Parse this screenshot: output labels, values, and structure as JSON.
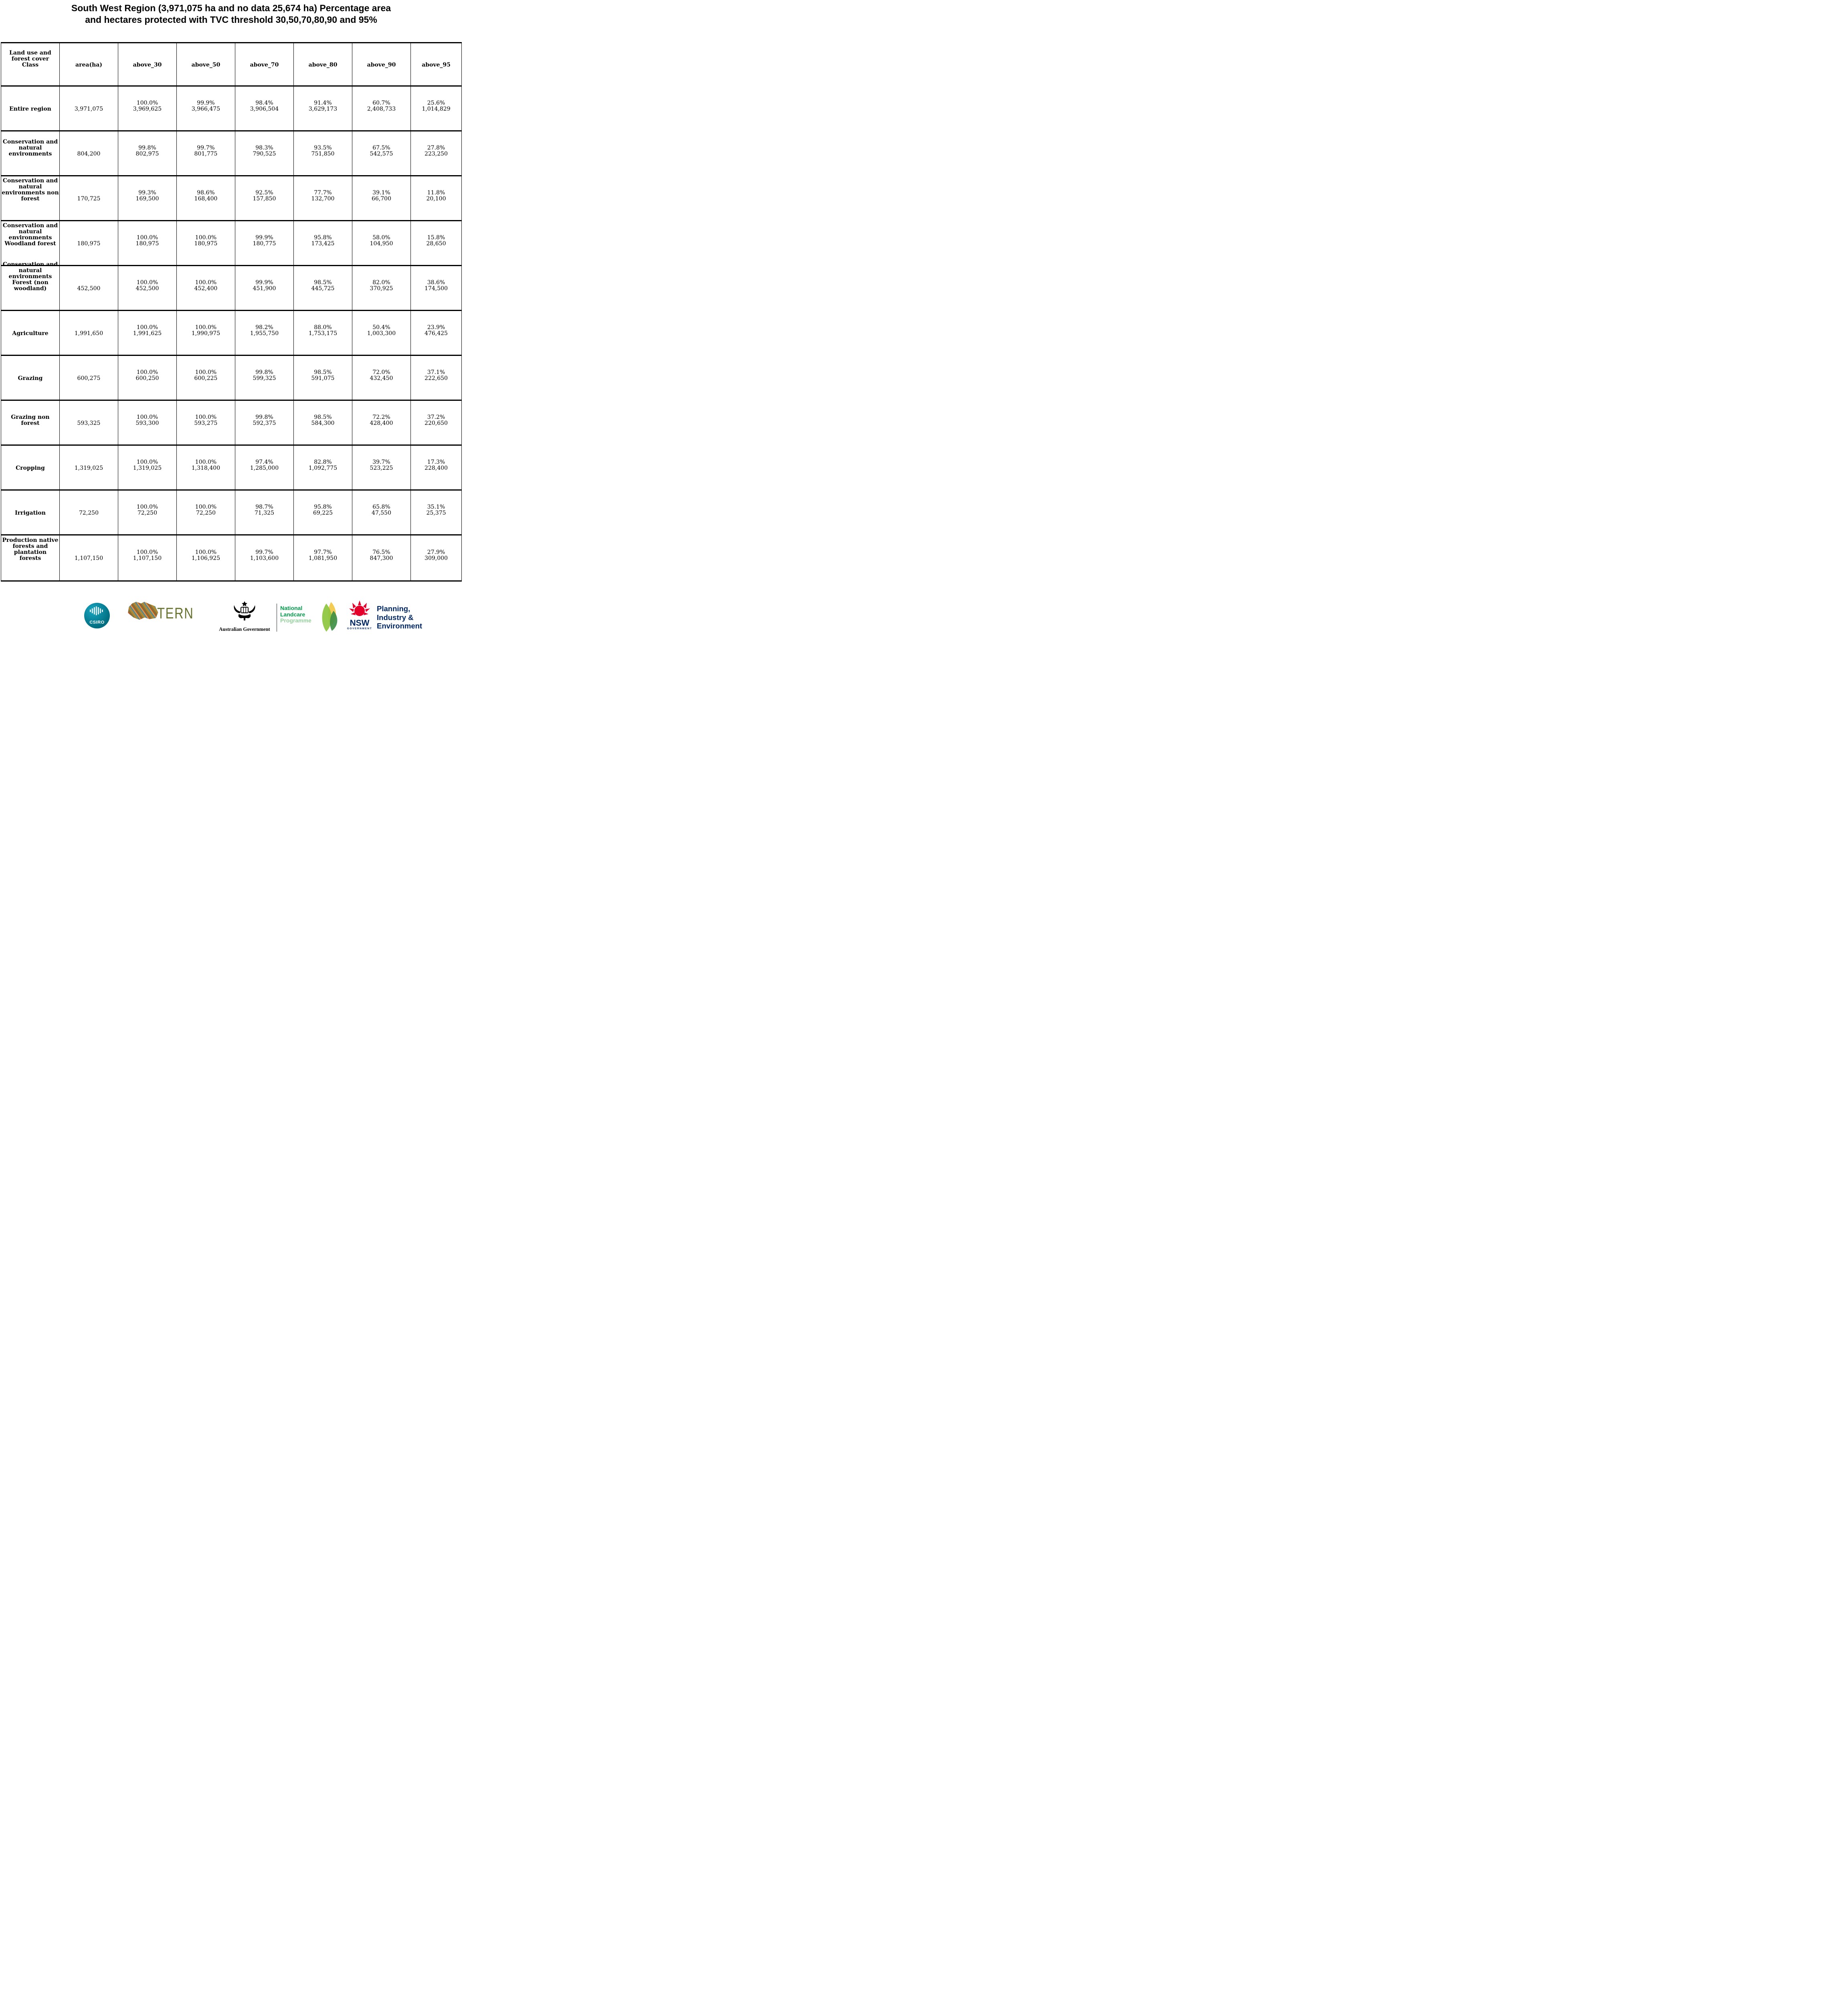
{
  "title": "South West Region (3,971,075 ha and no data 25,674 ha) Percentage area\nand hectares protected with TVC threshold 30,50,70,80,90 and 95%",
  "chart_data": {
    "type": "table",
    "title": "South West Region (3,971,075 ha and no data 25,674 ha) Percentage area and hectares protected with TVC threshold 30,50,70,80,90 and 95%",
    "columns": [
      "Land use and\nforest cover\nClass",
      "area(ha)",
      "above_30",
      "above_50",
      "above_70",
      "above_80",
      "above_90",
      "above_95"
    ],
    "rows": [
      {
        "label": "Entire region",
        "values": [
          "3,971,075",
          "100.0%\n3,969,625",
          "99.9%\n3,966,475",
          "98.4%\n3,906,504",
          "91.4%\n3,629,173",
          "60.7%\n2,408,733",
          "25.6%\n1,014,829"
        ]
      },
      {
        "label": "Conservation and\nnatural\nenvironments",
        "values": [
          "804,200",
          "99.8%\n802,975",
          "99.7%\n801,775",
          "98.3%\n790,525",
          "93.5%\n751,850",
          "67.5%\n542,575",
          "27.8%\n223,250"
        ]
      },
      {
        "label": "Conservation and\nnatural\nenvironments non\nforest",
        "values": [
          "170,725",
          "99.3%\n169,500",
          "98.6%\n168,400",
          "92.5%\n157,850",
          "77.7%\n132,700",
          "39.1%\n66,700",
          "11.8%\n20,100"
        ]
      },
      {
        "label": "Conservation and\nnatural\nenvironments\nWoodland forest",
        "values": [
          "180,975",
          "100.0%\n180,975",
          "100.0%\n180,975",
          "99.9%\n180,775",
          "95.8%\n173,425",
          "58.0%\n104,950",
          "15.8%\n28,650"
        ]
      },
      {
        "label": "Conservation and\nnatural\nenvironments\nForest (non\nwoodland)",
        "values": [
          "452,500",
          "100.0%\n452,500",
          "100.0%\n452,400",
          "99.9%\n451,900",
          "98.5%\n445,725",
          "82.0%\n370,925",
          "38.6%\n174,500"
        ]
      },
      {
        "label": "Agriculture",
        "values": [
          "1,991,650",
          "100.0%\n1,991,625",
          "100.0%\n1,990,975",
          "98.2%\n1,955,750",
          "88.0%\n1,753,175",
          "50.4%\n1,003,300",
          "23.9%\n476,425"
        ]
      },
      {
        "label": "Grazing",
        "values": [
          "600,275",
          "100.0%\n600,250",
          "100.0%\n600,225",
          "99.8%\n599,325",
          "98.5%\n591,075",
          "72.0%\n432,450",
          "37.1%\n222,650"
        ]
      },
      {
        "label": "Grazing non\nforest",
        "values": [
          "593,325",
          "100.0%\n593,300",
          "100.0%\n593,275",
          "99.8%\n592,375",
          "98.5%\n584,300",
          "72.2%\n428,400",
          "37.2%\n220,650"
        ]
      },
      {
        "label": "Cropping",
        "values": [
          "1,319,025",
          "100.0%\n1,319,025",
          "100.0%\n1,318,400",
          "97.4%\n1,285,000",
          "82.8%\n1,092,775",
          "39.7%\n523,225",
          "17.3%\n228,400"
        ]
      },
      {
        "label": "Irrigation",
        "values": [
          "72,250",
          "100.0%\n72,250",
          "100.0%\n72,250",
          "98.7%\n71,325",
          "95.8%\n69,225",
          "65.8%\n47,550",
          "35.1%\n25,375"
        ]
      },
      {
        "label": "Production native\nforests and\nplantation\nforests",
        "values": [
          "1,107,150",
          "100.0%\n1,107,150",
          "100.0%\n1,106,925",
          "99.7%\n1,103,600",
          "97.7%\n1,081,950",
          "76.5%\n847,300",
          "27.9%\n309,000"
        ]
      }
    ]
  },
  "footer": {
    "csiro_label": "CSIRO",
    "tern_label": "TERN",
    "aus_gov_label": "Australian Government",
    "landcare_lines": [
      "National",
      "Landcare",
      "Programme"
    ],
    "nsw_label": "NSW",
    "nsw_sub": "GOVERNMENT",
    "planning_lines": [
      "Planning,",
      "Industry &",
      "Environment"
    ]
  }
}
